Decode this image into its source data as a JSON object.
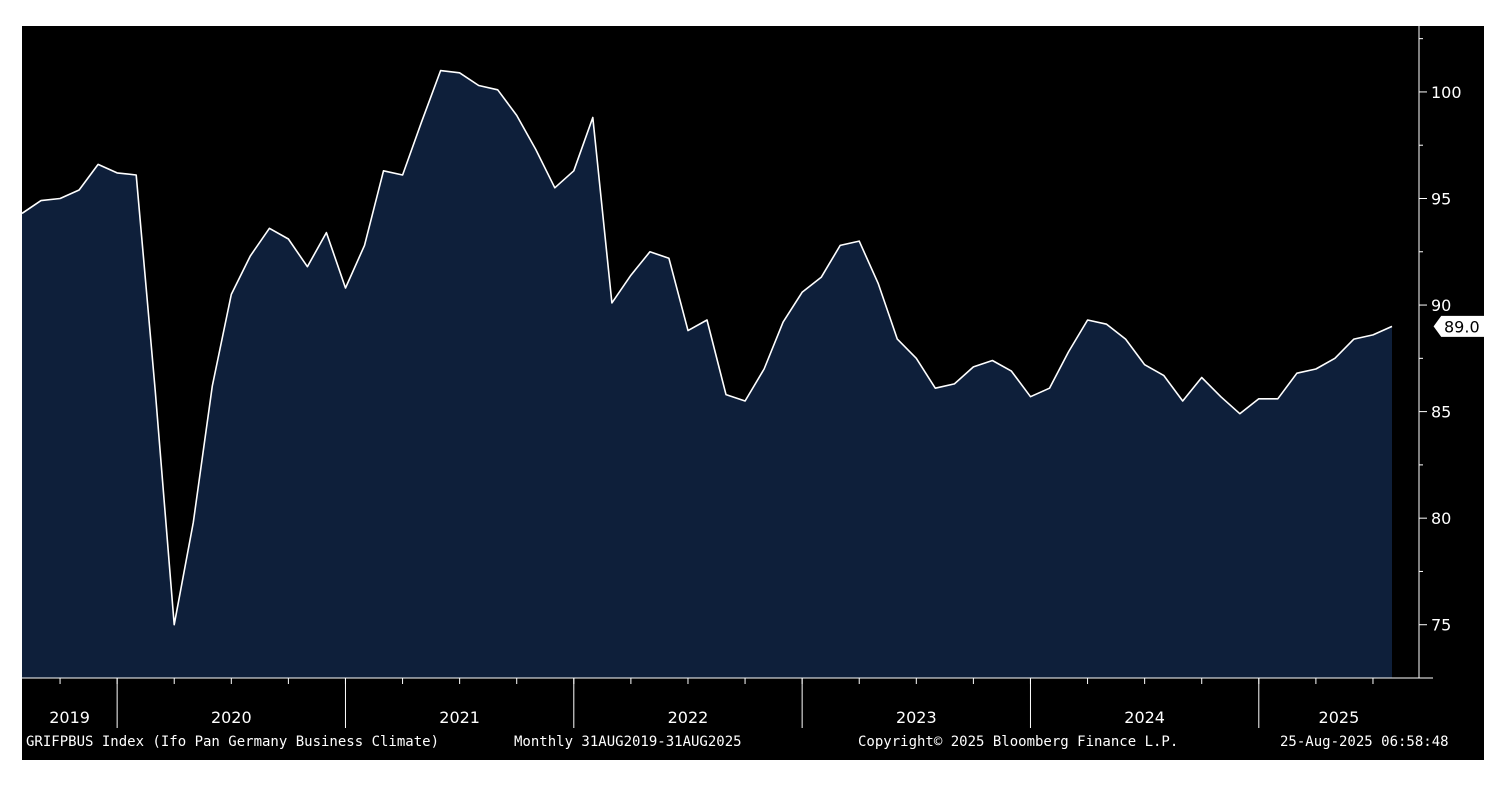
{
  "footer": {
    "description": "GRIFPBUS Index (Ifo Pan Germany Business Climate)",
    "range": "Monthly 31AUG2019-31AUG2025",
    "copyright": "Copyright© 2025 Bloomberg Finance L.P.",
    "timestamp": "25-Aug-2025 06:58:48"
  },
  "colors": {
    "background": "#000000",
    "area_fill": "#0e1f3a",
    "line": "#ffffff",
    "last_value_tag": "#ffffff"
  },
  "chart_data": {
    "type": "area",
    "frequency": "Monthly",
    "series": [
      {
        "x": [
          "2019-08",
          "2019-09",
          "2019-10",
          "2019-11",
          "2019-12",
          "2020-01",
          "2020-02",
          "2020-03",
          "2020-04",
          "2020-05",
          "2020-06",
          "2020-07",
          "2020-08",
          "2020-09",
          "2020-10",
          "2020-11",
          "2020-12",
          "2021-01",
          "2021-02",
          "2021-03",
          "2021-04",
          "2021-05",
          "2021-06",
          "2021-07",
          "2021-08",
          "2021-09",
          "2021-10",
          "2021-11",
          "2021-12",
          "2022-01",
          "2022-02",
          "2022-03",
          "2022-04",
          "2022-05",
          "2022-06",
          "2022-07",
          "2022-08",
          "2022-09",
          "2022-10",
          "2022-11",
          "2022-12",
          "2023-01",
          "2023-02",
          "2023-03",
          "2023-04",
          "2023-05",
          "2023-06",
          "2023-07",
          "2023-08",
          "2023-09",
          "2023-10",
          "2023-11",
          "2023-12",
          "2024-01",
          "2024-02",
          "2024-03",
          "2024-04",
          "2024-05",
          "2024-06",
          "2024-07",
          "2024-08",
          "2024-09",
          "2024-10",
          "2024-11",
          "2024-12",
          "2025-01",
          "2025-02",
          "2025-03",
          "2025-04",
          "2025-05",
          "2025-06",
          "2025-07",
          "2025-08"
        ],
        "values": [
          94.3,
          94.9,
          95.0,
          95.4,
          96.6,
          96.2,
          96.1,
          86.0,
          75.0,
          79.8,
          86.2,
          90.5,
          92.3,
          93.6,
          93.1,
          91.8,
          93.4,
          90.8,
          92.8,
          96.3,
          96.1,
          98.6,
          101.0,
          100.9,
          100.3,
          100.1,
          98.9,
          97.3,
          95.5,
          96.3,
          98.8,
          90.1,
          91.4,
          92.5,
          92.2,
          88.8,
          89.3,
          85.8,
          85.5,
          87.0,
          89.2,
          90.6,
          91.3,
          92.8,
          93.0,
          91.0,
          88.4,
          87.5,
          86.1,
          86.3,
          87.1,
          87.4,
          86.9,
          85.7,
          86.1,
          87.8,
          89.3,
          89.1,
          88.4,
          87.2,
          86.7,
          85.5,
          86.6,
          85.7,
          84.9,
          85.6,
          85.6,
          86.8,
          87.0,
          87.5,
          88.4,
          88.6,
          89.0
        ]
      }
    ],
    "ylim": [
      72.5,
      103.0
    ],
    "yticks": [
      75,
      80,
      85,
      90,
      95,
      100
    ],
    "years": [
      "2019",
      "2020",
      "2021",
      "2022",
      "2023",
      "2024",
      "2025"
    ],
    "last_value_label": "89.0",
    "grid": false,
    "legend": "none",
    "y_axis_position": "right"
  }
}
